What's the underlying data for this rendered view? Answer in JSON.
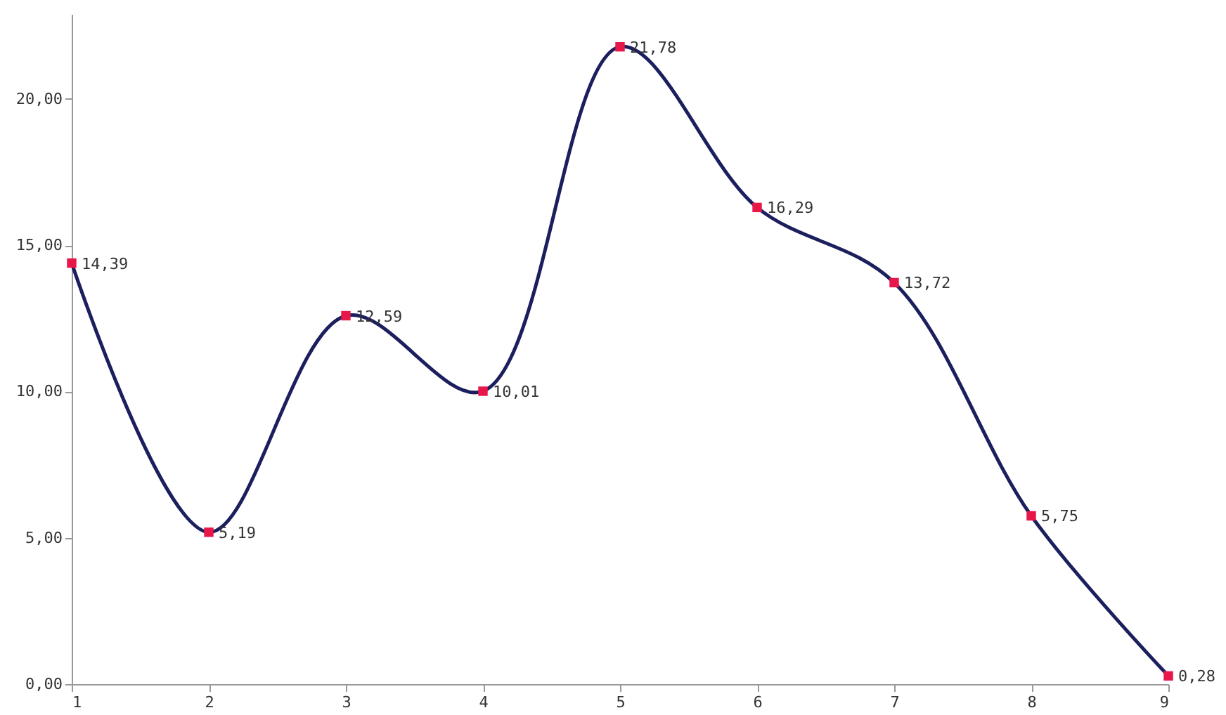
{
  "chart_data": {
    "type": "line",
    "x": [
      1,
      2,
      3,
      4,
      5,
      6,
      7,
      8,
      9
    ],
    "series": [
      {
        "color": "#1c1f5e",
        "values": [
          14.39,
          5.19,
          12.59,
          10.01,
          21.78,
          16.29,
          13.72,
          5.75,
          0.28
        ],
        "colors": [
          "#e8174a",
          "#e8174a",
          "#e8174a",
          "#e8174a",
          "#e8174a",
          "#e8174a",
          "#e8174a",
          "#e8174a",
          "#e8174a"
        ],
        "value_labels": [
          "14,39",
          "5,19",
          "12,59",
          "10,01",
          "21,78",
          "16,29",
          "13,72",
          "5,75",
          "0,28"
        ]
      }
    ],
    "marker": "square",
    "line_style": "solid",
    "xlim": [
      1,
      9
    ],
    "xticks": [
      1,
      2,
      3,
      4,
      5,
      6,
      7,
      8,
      9
    ],
    "ylim": [
      0,
      22.9
    ],
    "yticks": [
      {
        "value": 0,
        "label": "0,00"
      },
      {
        "value": 5,
        "label": "5,00"
      },
      {
        "value": 10,
        "label": "10,00"
      },
      {
        "value": 15,
        "label": "15,00"
      },
      {
        "value": 20,
        "label": "20,00"
      }
    ],
    "grid": false
  }
}
